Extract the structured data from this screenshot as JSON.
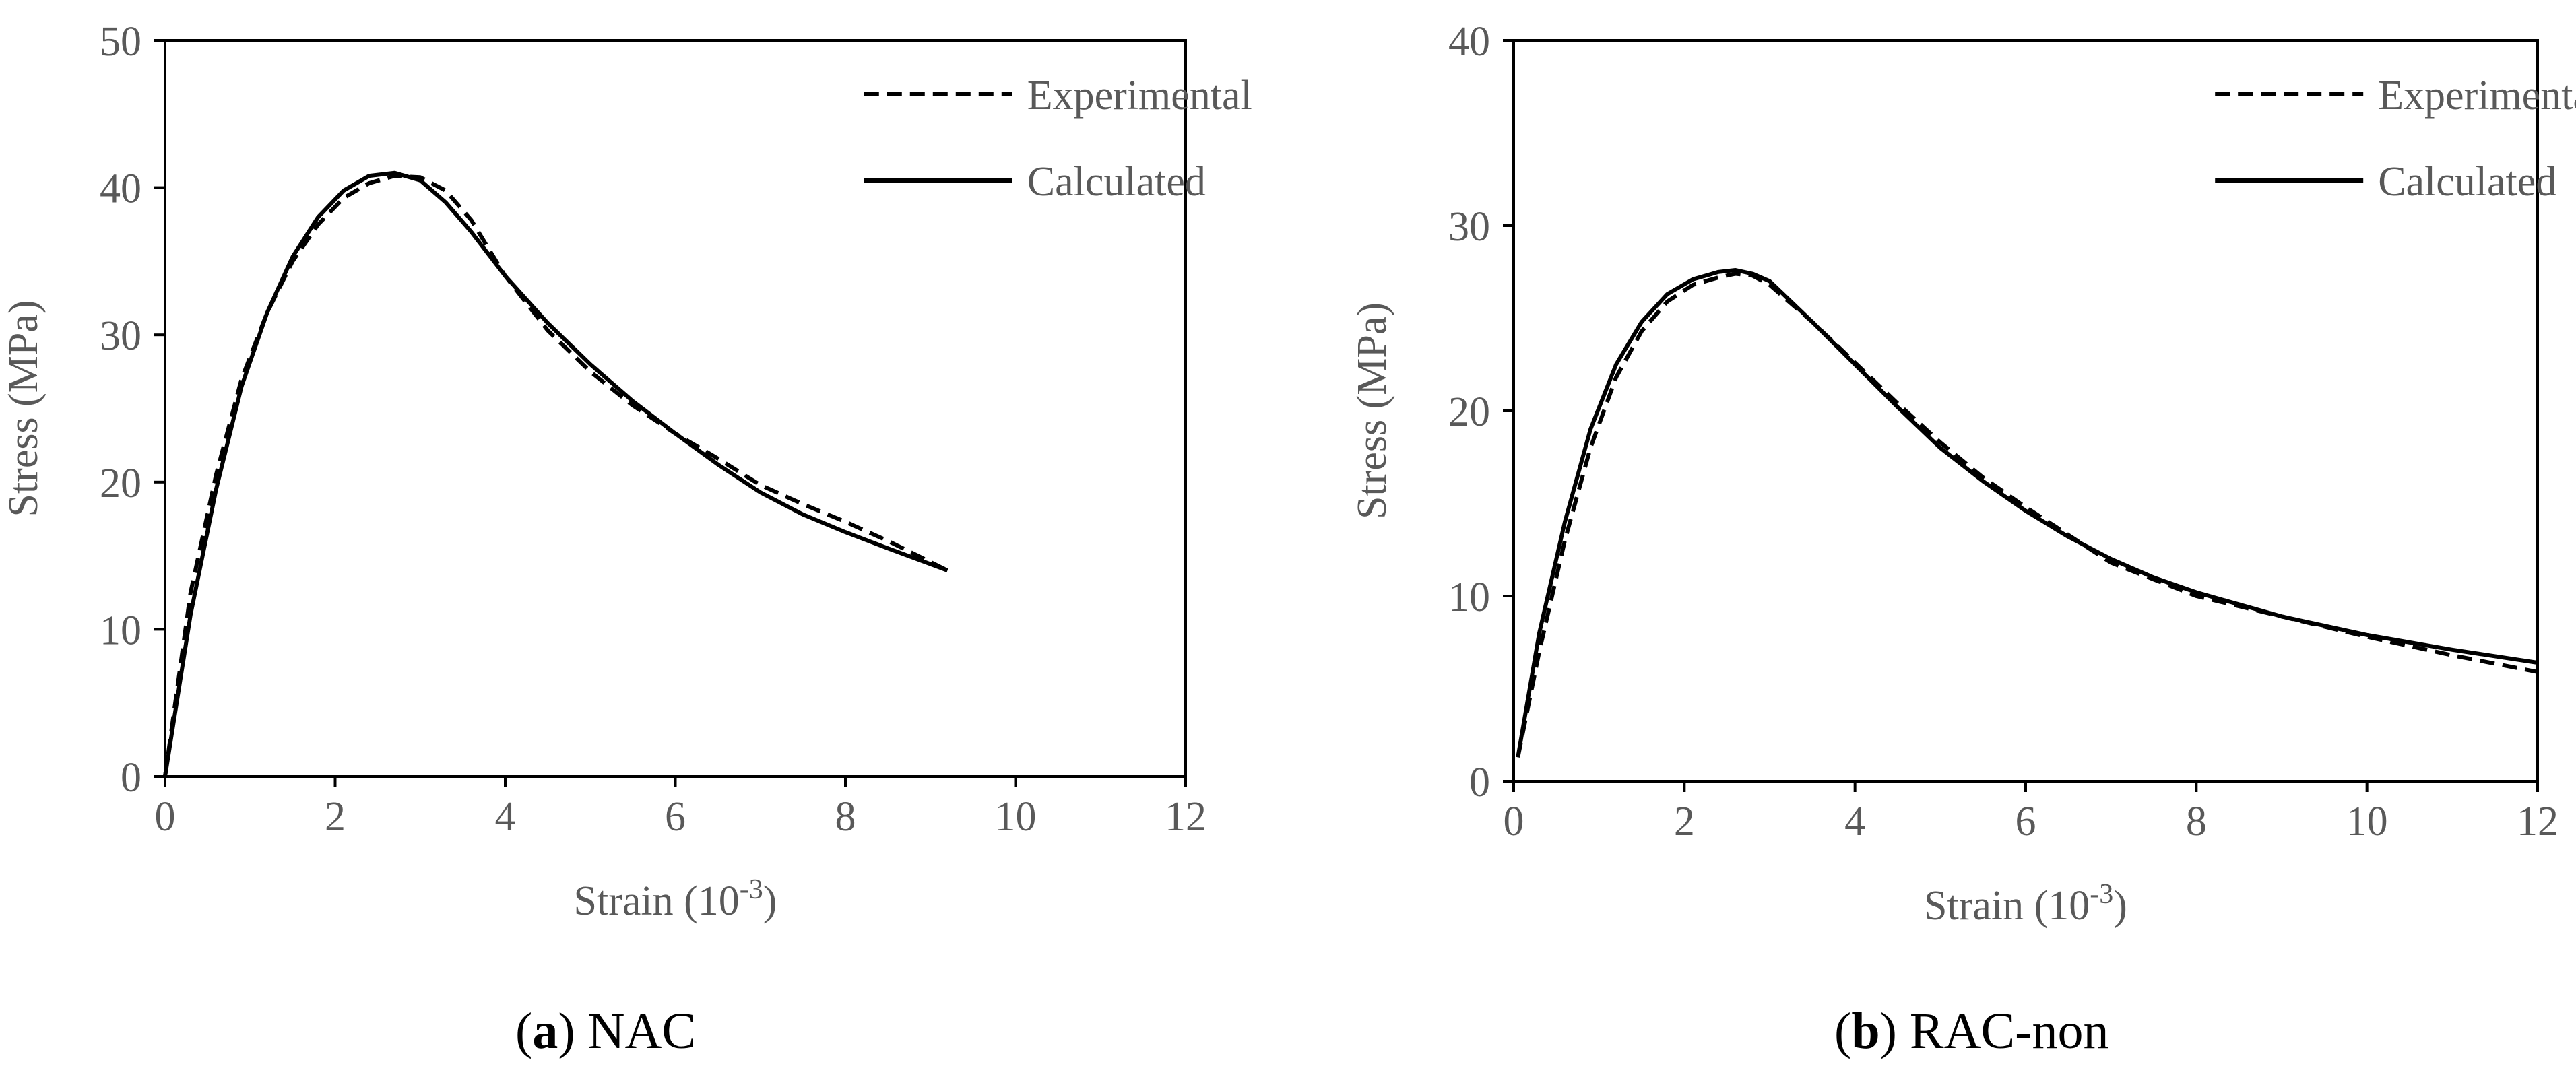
{
  "figure": {
    "panels": [
      {
        "label_bold": "a",
        "caption": "NAC"
      },
      {
        "label_bold": "b",
        "caption": "RAC-non"
      }
    ]
  },
  "chart_data": [
    {
      "type": "line",
      "title": "",
      "xlabel": "Strain (10-3)",
      "xlabel_main": "Strain (10",
      "xlabel_sup": "-3",
      "xlabel_end": ")",
      "ylabel": "Stress (MPa)",
      "xlim": [
        0,
        12
      ],
      "ylim": [
        0,
        50
      ],
      "xticks": [
        0,
        2,
        4,
        6,
        8,
        10,
        12
      ],
      "yticks": [
        0,
        10,
        20,
        30,
        40,
        50
      ],
      "grid": false,
      "legend_position": "top-right",
      "series": [
        {
          "name": "Experimental",
          "style": "dashed",
          "x": [
            0,
            0.3,
            0.6,
            0.9,
            1.2,
            1.5,
            1.8,
            2.1,
            2.4,
            2.7,
            3.0,
            3.3,
            3.6,
            4.0,
            4.5,
            5.0,
            5.5,
            6.0,
            6.5,
            7.0,
            7.5,
            8.0,
            8.5,
            9.2
          ],
          "y": [
            0,
            12.5,
            20.5,
            27.0,
            31.5,
            35.0,
            37.5,
            39.3,
            40.3,
            40.8,
            40.7,
            39.8,
            37.8,
            34.0,
            30.3,
            27.5,
            25.2,
            23.3,
            21.6,
            19.8,
            18.5,
            17.3,
            16.0,
            14.0
          ]
        },
        {
          "name": "Calculated",
          "style": "solid",
          "x": [
            0,
            0.3,
            0.6,
            0.9,
            1.2,
            1.5,
            1.8,
            2.1,
            2.4,
            2.7,
            3.0,
            3.3,
            3.6,
            4.0,
            4.5,
            5.0,
            5.5,
            6.0,
            6.5,
            7.0,
            7.5,
            8.0,
            8.5,
            9.2
          ],
          "y": [
            0,
            11.0,
            19.5,
            26.5,
            31.5,
            35.3,
            38.0,
            39.8,
            40.8,
            41.0,
            40.5,
            39.0,
            37.0,
            34.0,
            30.8,
            28.0,
            25.5,
            23.3,
            21.2,
            19.3,
            17.8,
            16.6,
            15.5,
            14.0
          ]
        }
      ]
    },
    {
      "type": "line",
      "title": "",
      "xlabel": "Strain (10-3)",
      "xlabel_main": "Strain (10",
      "xlabel_sup": "-3",
      "xlabel_end": ")",
      "ylabel": "Stress (MPa)",
      "xlim": [
        0,
        12
      ],
      "ylim": [
        0,
        40
      ],
      "xticks": [
        0,
        2,
        4,
        6,
        8,
        10,
        12
      ],
      "yticks": [
        0,
        10,
        20,
        30,
        40
      ],
      "grid": false,
      "legend_position": "top-right",
      "series": [
        {
          "name": "Experimental",
          "style": "dashed",
          "x": [
            0.05,
            0.3,
            0.6,
            0.9,
            1.2,
            1.5,
            1.8,
            2.1,
            2.4,
            2.6,
            2.8,
            3.0,
            3.5,
            4.0,
            4.5,
            5.0,
            5.5,
            6.0,
            6.5,
            7.0,
            7.5,
            8.0,
            9.0,
            10.0,
            11.0,
            12.0
          ],
          "y": [
            1.3,
            7.0,
            13.0,
            18.0,
            21.8,
            24.3,
            25.9,
            26.8,
            27.2,
            27.4,
            27.3,
            26.8,
            24.8,
            22.6,
            20.4,
            18.3,
            16.4,
            14.8,
            13.3,
            11.8,
            10.9,
            10.0,
            8.9,
            7.8,
            6.8,
            5.9
          ]
        },
        {
          "name": "Calculated",
          "style": "solid",
          "x": [
            0.05,
            0.3,
            0.6,
            0.9,
            1.2,
            1.5,
            1.8,
            2.1,
            2.4,
            2.6,
            2.8,
            3.0,
            3.5,
            4.0,
            4.5,
            5.0,
            5.5,
            6.0,
            6.5,
            7.0,
            7.5,
            8.0,
            9.0,
            10.0,
            11.0,
            12.0
          ],
          "y": [
            1.3,
            8.0,
            14.0,
            19.0,
            22.5,
            24.8,
            26.3,
            27.1,
            27.5,
            27.6,
            27.4,
            27.0,
            24.8,
            22.5,
            20.2,
            18.0,
            16.2,
            14.6,
            13.2,
            12.0,
            11.0,
            10.2,
            8.9,
            7.9,
            7.1,
            6.4
          ]
        }
      ]
    }
  ]
}
